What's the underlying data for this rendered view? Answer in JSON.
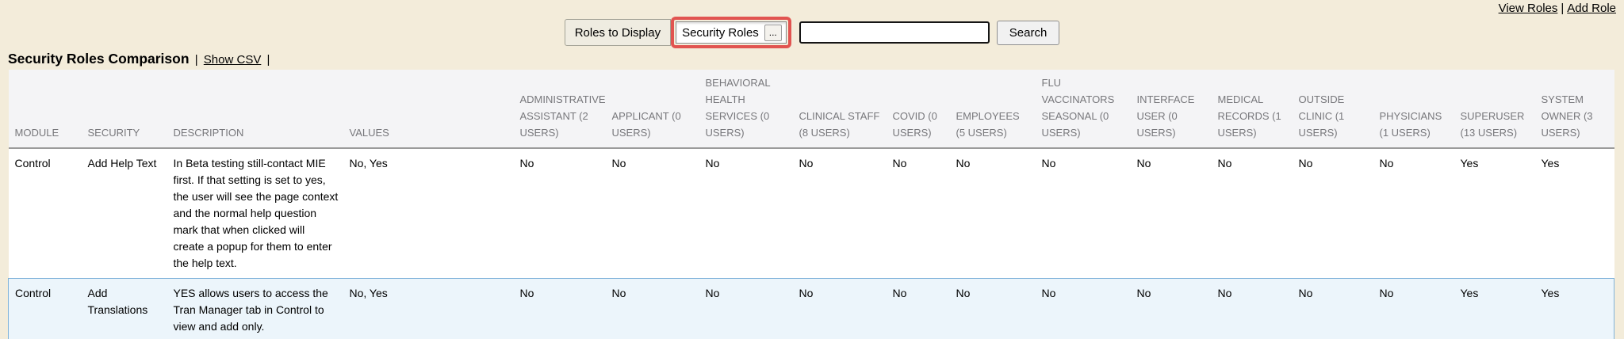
{
  "colors": {
    "page_background": "#f3ecda",
    "highlight_ring": "#e15450",
    "header_text": "#77777b",
    "row_highlight_background": "#ecf5fb",
    "row_highlight_border": "#7fb2da"
  },
  "header_links": {
    "view_roles_label": "View Roles",
    "separator": "|",
    "add_role_label": "Add Role"
  },
  "toolbar": {
    "roles_to_display_label": "Roles to Display",
    "roles_select_value": "Security Roles",
    "roles_select_more_label": "...",
    "search_value": "",
    "search_button_label": "Search"
  },
  "title_bar": {
    "title": "Security Roles Comparison",
    "separator_1": "|",
    "show_csv_label": "Show CSV",
    "separator_2": "|"
  },
  "table": {
    "columns": [
      {
        "id": "module",
        "label": "MODULE"
      },
      {
        "id": "security",
        "label": "SECURITY"
      },
      {
        "id": "description",
        "label": "DESCRIPTION"
      },
      {
        "id": "values",
        "label": "VALUES"
      },
      {
        "id": "administrative-assistant",
        "label": "ADMINISTRATIVE ASSISTANT (2 USERS)"
      },
      {
        "id": "applicant",
        "label": "APPLICANT (0 USERS)"
      },
      {
        "id": "behavioral-health-services",
        "label": "BEHAVIORAL HEALTH SERVICES (0 USERS)"
      },
      {
        "id": "clinical-staff",
        "label": "CLINICAL STAFF (8 USERS)"
      },
      {
        "id": "covid",
        "label": "COVID (0 USERS)"
      },
      {
        "id": "employees",
        "label": "EMPLOYEES (5 USERS)"
      },
      {
        "id": "flu-vaccinators-seasonal",
        "label": "FLU VACCINATORS SEASONAL (0 USERS)"
      },
      {
        "id": "interface-user",
        "label": "INTERFACE USER (0 USERS)"
      },
      {
        "id": "medical-records",
        "label": "MEDICAL RECORDS (1 USERS)"
      },
      {
        "id": "outside-clinic",
        "label": "OUTSIDE CLINIC (1 USERS)"
      },
      {
        "id": "physicians",
        "label": "PHYSICIANS (1 USERS)"
      },
      {
        "id": "superuser",
        "label": "SUPERUSER (13 USERS)"
      },
      {
        "id": "system-owner",
        "label": "SYSTEM OWNER (3 USERS)"
      }
    ],
    "rows": [
      {
        "highlighted": false,
        "cells": [
          "Control",
          "Add Help Text",
          "In Beta testing still-contact MIE first. If that setting is set to yes, the user will see the page context and the normal help question mark that when clicked will create a popup for them to enter the help text.",
          "No, Yes",
          "No",
          "No",
          "No",
          "No",
          "No",
          "No",
          "No",
          "No",
          "No",
          "No",
          "No",
          "Yes",
          "Yes"
        ]
      },
      {
        "highlighted": true,
        "cells": [
          "Control",
          "Add Translations",
          "YES allows users to access the Tran Manager tab in Control to view and add only.",
          "No, Yes",
          "No",
          "No",
          "No",
          "No",
          "No",
          "No",
          "No",
          "No",
          "No",
          "No",
          "No",
          "Yes",
          "Yes"
        ]
      }
    ]
  }
}
